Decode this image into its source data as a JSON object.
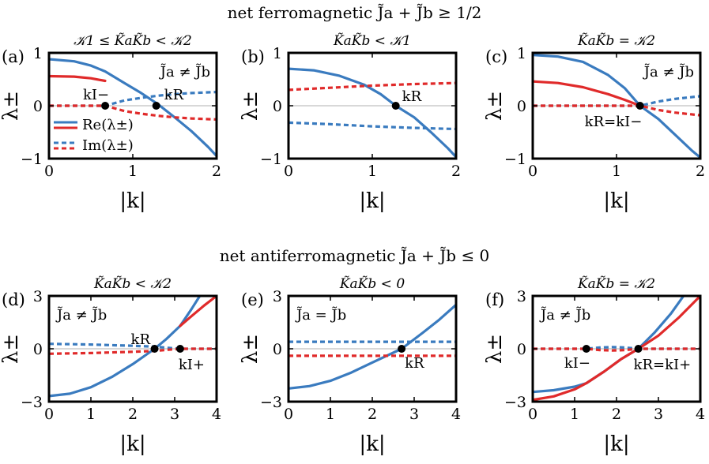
{
  "figure": {
    "section_top": "net  ferromagnetic  J̃a + J̃b ≥ 1/2",
    "section_bottom": "net  antiferromagnetic  J̃a + J̃b ≤ 0",
    "colors": {
      "blue": "#3a7bbf",
      "red": "#e02a2a",
      "zero_line": "#b0b0b0"
    }
  },
  "chart_data": [
    {
      "id": "a",
      "type": "line",
      "panel_label": "(a)",
      "title": "𝒦1 ≤ K̃aK̃b < 𝒦2",
      "xlabel": "|k|",
      "ylabel": "λ±",
      "xlim": [
        0,
        2
      ],
      "ylim": [
        -1,
        1
      ],
      "xticks": [
        "0",
        "1",
        "2"
      ],
      "yticks": [
        "−1",
        "0",
        "1"
      ],
      "corner_note": "J̃a ≠ J̃b",
      "legend": [
        "Re(λ±)",
        "Im(λ±)"
      ],
      "points": [
        {
          "label": "kI−",
          "x": 0.67,
          "y": 0
        },
        {
          "label": "kR",
          "x": 1.28,
          "y": 0
        }
      ],
      "series": [
        {
          "name": "Re(λ±)",
          "color": "blue",
          "dash": false,
          "x": [
            0,
            0.3,
            0.5,
            0.67,
            0.9,
            1.1,
            1.3,
            1.5,
            1.7,
            1.9,
            2.0
          ],
          "y": [
            0.88,
            0.84,
            0.76,
            0.65,
            0.43,
            0.24,
            0.03,
            -0.22,
            -0.48,
            -0.78,
            -0.95
          ]
        },
        {
          "name": "Re(λ±)",
          "color": "red",
          "dash": false,
          "x": [
            0,
            0.3,
            0.5,
            0.67
          ],
          "y": [
            0.56,
            0.55,
            0.52,
            0.47
          ]
        },
        {
          "name": "Im(λ±)",
          "color": "blue",
          "dash": true,
          "x": [
            0,
            0.3,
            0.5,
            0.67,
            0.9,
            1.1,
            1.3,
            1.5,
            1.7,
            2.0
          ],
          "y": [
            0,
            0,
            0,
            0,
            0.1,
            0.15,
            0.19,
            0.22,
            0.24,
            0.26
          ]
        },
        {
          "name": "Im(λ±)",
          "color": "red",
          "dash": true,
          "x": [
            0,
            0.3,
            0.5,
            0.67,
            0.9,
            1.1,
            1.3,
            1.5,
            1.7,
            2.0
          ],
          "y": [
            0,
            0,
            0,
            0,
            -0.1,
            -0.15,
            -0.19,
            -0.22,
            -0.24,
            -0.26
          ]
        }
      ]
    },
    {
      "id": "b",
      "type": "line",
      "panel_label": "(b)",
      "title": "K̃aK̃b < 𝒦1",
      "xlabel": "|k|",
      "ylabel": "λ±",
      "xlim": [
        0,
        2
      ],
      "ylim": [
        -1,
        1
      ],
      "xticks": [
        "0",
        "1",
        "2"
      ],
      "yticks": [
        "−1",
        "0",
        "1"
      ],
      "corner_note": "",
      "points": [
        {
          "label": "kR",
          "x": 1.28,
          "y": 0
        }
      ],
      "series": [
        {
          "name": "Re(λ±)",
          "color": "blue",
          "dash": false,
          "x": [
            0,
            0.3,
            0.6,
            0.9,
            1.1,
            1.28,
            1.5,
            1.7,
            1.9,
            2.0
          ],
          "y": [
            0.7,
            0.67,
            0.57,
            0.4,
            0.22,
            0.0,
            -0.22,
            -0.5,
            -0.8,
            -0.97
          ]
        },
        {
          "name": "Im(λ±)",
          "color": "red",
          "dash": true,
          "x": [
            0,
            0.5,
            1.0,
            1.5,
            2.0
          ],
          "y": [
            0.3,
            0.34,
            0.38,
            0.41,
            0.43
          ]
        },
        {
          "name": "Im(λ±)",
          "color": "blue",
          "dash": true,
          "x": [
            0,
            0.5,
            1.0,
            1.5,
            2.0
          ],
          "y": [
            -0.32,
            -0.35,
            -0.39,
            -0.42,
            -0.44
          ]
        }
      ]
    },
    {
      "id": "c",
      "type": "line",
      "panel_label": "(c)",
      "title": "K̃aK̃b = 𝒦2",
      "xlabel": "|k|",
      "ylabel": "λ±",
      "xlim": [
        0,
        2
      ],
      "ylim": [
        -1,
        1
      ],
      "xticks": [
        "0",
        "1",
        "2"
      ],
      "yticks": [
        "−1",
        "0",
        "1"
      ],
      "corner_note": "J̃a ≠ J̃b",
      "points": [
        {
          "label": "kR=kI−",
          "x": 1.28,
          "y": 0
        }
      ],
      "series": [
        {
          "name": "Re(λ±)",
          "color": "blue",
          "dash": false,
          "x": [
            0,
            0.3,
            0.6,
            0.9,
            1.1,
            1.28,
            1.5,
            1.7,
            1.9,
            2.0
          ],
          "y": [
            0.96,
            0.93,
            0.83,
            0.58,
            0.33,
            0.0,
            -0.25,
            -0.55,
            -0.85,
            -0.98
          ]
        },
        {
          "name": "Re(λ±)",
          "color": "red",
          "dash": false,
          "x": [
            0,
            0.3,
            0.6,
            0.9,
            1.1,
            1.28
          ],
          "y": [
            0.46,
            0.43,
            0.35,
            0.22,
            0.11,
            0.0
          ]
        },
        {
          "name": "Im(λ±)",
          "color": "blue",
          "dash": true,
          "x": [
            0,
            0.6,
            1.0,
            1.28,
            1.5,
            1.7,
            2.0
          ],
          "y": [
            0,
            0,
            0,
            0,
            0.08,
            0.13,
            0.18
          ]
        },
        {
          "name": "Im(λ±)",
          "color": "red",
          "dash": true,
          "x": [
            0,
            0.6,
            1.0,
            1.28,
            1.5,
            1.7,
            2.0
          ],
          "y": [
            0,
            0,
            0,
            0,
            -0.08,
            -0.13,
            -0.18
          ]
        }
      ]
    },
    {
      "id": "d",
      "type": "line",
      "panel_label": "(d)",
      "title": "K̃aK̃b < 𝒦2",
      "xlabel": "|k|",
      "ylabel": "λ±",
      "xlim": [
        0,
        4
      ],
      "ylim": [
        -3,
        3
      ],
      "xticks": [
        "0",
        "1",
        "2",
        "3",
        "4"
      ],
      "yticks": [
        "−3",
        "0",
        "3"
      ],
      "corner_note": "J̃a ≠ J̃b",
      "points": [
        {
          "label": "kR",
          "x": 2.52,
          "y": 0
        },
        {
          "label": "kI+",
          "x": 3.13,
          "y": 0
        }
      ],
      "series": [
        {
          "name": "Re(λ±)",
          "color": "blue",
          "dash": false,
          "x": [
            0,
            0.5,
            1.0,
            1.5,
            2.0,
            2.52,
            2.8,
            3.13,
            3.4,
            3.6
          ],
          "y": [
            -2.68,
            -2.55,
            -2.18,
            -1.6,
            -0.87,
            0.0,
            0.55,
            1.3,
            2.25,
            3.0
          ]
        },
        {
          "name": "Re(λ±)",
          "color": "red",
          "dash": false,
          "x": [
            3.13,
            3.4,
            3.7,
            4.0
          ],
          "y": [
            1.3,
            1.85,
            2.45,
            3.0
          ]
        },
        {
          "name": "Im(λ±)",
          "color": "blue",
          "dash": true,
          "x": [
            0,
            1.0,
            2.0,
            2.52,
            3.13,
            3.5,
            4.0
          ],
          "y": [
            0.28,
            0.24,
            0.17,
            0.12,
            0,
            0,
            0
          ]
        },
        {
          "name": "Im(λ±)",
          "color": "red",
          "dash": true,
          "x": [
            0,
            1.0,
            2.0,
            2.52,
            3.13,
            3.5,
            4.0
          ],
          "y": [
            -0.28,
            -0.24,
            -0.17,
            -0.12,
            0,
            0,
            0
          ]
        }
      ]
    },
    {
      "id": "e",
      "type": "line",
      "panel_label": "(e)",
      "title": "K̃aK̃b < 0",
      "xlabel": "|k|",
      "ylabel": "λ±",
      "xlim": [
        0,
        4
      ],
      "ylim": [
        -3,
        3
      ],
      "xticks": [
        "0",
        "1",
        "2",
        "3",
        "4"
      ],
      "yticks": [
        "−3",
        "0",
        "3"
      ],
      "corner_note": "J̃a = J̃b",
      "points": [
        {
          "label": "kR",
          "x": 2.7,
          "y": 0
        }
      ],
      "series": [
        {
          "name": "Re(λ±)",
          "color": "blue",
          "dash": false,
          "x": [
            0,
            0.5,
            1.0,
            1.5,
            2.0,
            2.7,
            3.2,
            3.6,
            4.0
          ],
          "y": [
            -2.25,
            -2.12,
            -1.82,
            -1.35,
            -0.78,
            0.0,
            0.9,
            1.65,
            2.5
          ]
        },
        {
          "name": "Im(λ±)",
          "color": "blue",
          "dash": true,
          "x": [
            0,
            2.0,
            4.0
          ],
          "y": [
            0.4,
            0.4,
            0.4
          ]
        },
        {
          "name": "Im(λ±)",
          "color": "red",
          "dash": true,
          "x": [
            0,
            2.0,
            4.0
          ],
          "y": [
            -0.4,
            -0.4,
            -0.4
          ]
        }
      ]
    },
    {
      "id": "f",
      "type": "line",
      "panel_label": "(f)",
      "title": "K̃aK̃b = 𝒦2",
      "xlabel": "|k|",
      "ylabel": "λ±",
      "xlim": [
        0,
        4
      ],
      "ylim": [
        -3,
        3
      ],
      "xticks": [
        "0",
        "1",
        "2",
        "3",
        "4"
      ],
      "yticks": [
        "−3",
        "0",
        "3"
      ],
      "corner_note": "J̃a ≠ J̃b",
      "points": [
        {
          "label": "kI−",
          "x": 1.28,
          "y": 0
        },
        {
          "label": "kR=kI+",
          "x": 2.52,
          "y": 0
        }
      ],
      "series": [
        {
          "name": "Re(λ±)",
          "color": "blue",
          "dash": false,
          "x": [
            0,
            0.5,
            1.0,
            1.28,
            1.7,
            2.1,
            2.52,
            2.9,
            3.3,
            3.6
          ],
          "y": [
            -2.45,
            -2.35,
            -2.15,
            -1.95,
            -1.3,
            -0.6,
            0.0,
            0.9,
            2.0,
            3.0
          ]
        },
        {
          "name": "Re(λ±)",
          "color": "red",
          "dash": false,
          "x": [
            0,
            0.5,
            1.0,
            1.28,
            1.7,
            2.1,
            2.52,
            3.0,
            3.5,
            4.0
          ],
          "y": [
            -2.9,
            -2.7,
            -2.3,
            -1.95,
            -1.3,
            -0.6,
            0.0,
            0.75,
            1.8,
            3.0
          ]
        },
        {
          "name": "Im(λ±)",
          "color": "blue",
          "dash": true,
          "x": [
            0,
            1.0,
            1.28,
            1.6,
            1.9,
            2.2,
            2.52,
            3.0,
            4.0
          ],
          "y": [
            0,
            0,
            0,
            0.07,
            0.1,
            0.07,
            0,
            0,
            0
          ]
        },
        {
          "name": "Im(λ±)",
          "color": "red",
          "dash": true,
          "x": [
            0,
            1.0,
            1.28,
            1.6,
            1.9,
            2.2,
            2.52,
            3.0,
            4.0
          ],
          "y": [
            0,
            0,
            0,
            -0.07,
            -0.1,
            -0.07,
            0,
            0,
            0
          ]
        }
      ]
    }
  ]
}
